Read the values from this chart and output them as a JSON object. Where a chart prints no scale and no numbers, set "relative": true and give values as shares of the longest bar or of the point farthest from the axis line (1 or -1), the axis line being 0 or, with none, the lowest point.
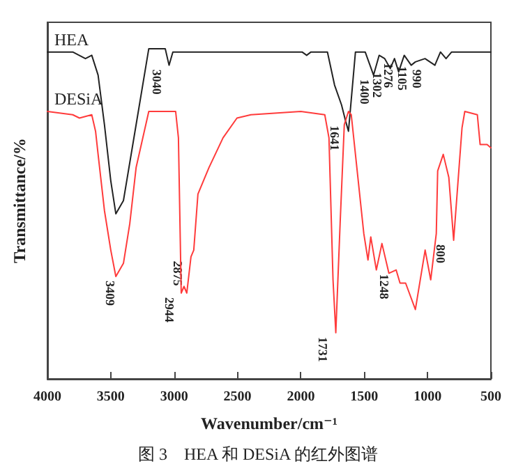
{
  "chart_data": {
    "type": "line",
    "title": "图 3　HEA 和 DESiA 的红外图谱",
    "xlabel": "Wavenumber/cm⁻¹",
    "ylabel": "Transmittance/%",
    "relative": true,
    "tick_labels": "x",
    "legend": false,
    "grid": false,
    "xlim": [
      4000,
      500
    ],
    "xticks": [
      4000,
      3500,
      3000,
      2500,
      2000,
      1500,
      1000,
      500
    ],
    "series": [
      {
        "name": "HEA",
        "color": "#222222",
        "x": [
          4000,
          3800,
          3700,
          3650,
          3600,
          3550,
          3500,
          3460,
          3400,
          3300,
          3200,
          3100,
          3070,
          3040,
          3010,
          2500,
          1990,
          1954,
          1920,
          1790,
          1734,
          1679,
          1646,
          1624,
          1569,
          1492,
          1426,
          1382,
          1338,
          1294,
          1261,
          1228,
          1184,
          1129,
          1096,
          1020,
          942,
          898,
          854,
          810,
          500
        ],
        "values": [
          0.99,
          0.99,
          0.97,
          0.98,
          0.92,
          0.77,
          0.6,
          0.5,
          0.54,
          0.77,
          1.0,
          1.0,
          1.0,
          0.95,
          0.99,
          0.99,
          0.99,
          0.98,
          0.99,
          0.99,
          0.89,
          0.83,
          0.78,
          0.75,
          0.99,
          0.99,
          0.92,
          0.98,
          0.97,
          0.94,
          0.97,
          0.93,
          0.98,
          0.95,
          0.96,
          0.97,
          0.95,
          0.99,
          0.97,
          0.99,
          0.99
        ]
      },
      {
        "name": "DESiA",
        "color": "#ff3b3b",
        "x": [
          4000,
          3800,
          3747,
          3650,
          3620,
          3600,
          3550,
          3500,
          3460,
          3400,
          3350,
          3300,
          3200,
          3100,
          2988,
          2966,
          2944,
          2922,
          2900,
          2867,
          2845,
          2812,
          2725,
          2614,
          2504,
          2394,
          2000,
          1811,
          1778,
          1746,
          1724,
          1690,
          1657,
          1624,
          1602,
          1558,
          1503,
          1470,
          1448,
          1404,
          1360,
          1305,
          1248,
          1217,
          1173,
          1096,
          1019,
          975,
          931,
          920,
          876,
          832,
          794,
          728,
          706,
          607,
          585,
          530,
          500
        ],
        "values": [
          0.81,
          0.8,
          0.79,
          0.8,
          0.75,
          0.68,
          0.51,
          0.39,
          0.31,
          0.35,
          0.47,
          0.64,
          0.81,
          0.81,
          0.81,
          0.73,
          0.26,
          0.28,
          0.26,
          0.37,
          0.39,
          0.56,
          0.64,
          0.73,
          0.79,
          0.8,
          0.81,
          0.8,
          0.73,
          0.3,
          0.14,
          0.47,
          0.77,
          0.81,
          0.8,
          0.64,
          0.44,
          0.36,
          0.43,
          0.33,
          0.41,
          0.32,
          0.33,
          0.29,
          0.29,
          0.21,
          0.39,
          0.3,
          0.44,
          0.63,
          0.68,
          0.61,
          0.42,
          0.76,
          0.81,
          0.8,
          0.71,
          0.71,
          0.7
        ]
      }
    ],
    "annotations": [
      {
        "text": "3040",
        "x": 3040,
        "y": 0.95
      },
      {
        "text": "1641",
        "x": 1641,
        "y": 0.78
      },
      {
        "text": "1400",
        "x": 1400,
        "y": 0.92
      },
      {
        "text": "1302",
        "x": 1302,
        "y": 0.94
      },
      {
        "text": "1276",
        "x": 1276,
        "y": 0.97
      },
      {
        "text": "1105",
        "x": 1105,
        "y": 0.96
      },
      {
        "text": "990",
        "x": 990,
        "y": 0.95
      },
      {
        "text": "3409",
        "x": 3409,
        "y": 0.31
      },
      {
        "text": "2944",
        "x": 2944,
        "y": 0.26
      },
      {
        "text": "2875",
        "x": 2875,
        "y": 0.37
      },
      {
        "text": "1731",
        "x": 1731,
        "y": 0.14
      },
      {
        "text": "1248",
        "x": 1248,
        "y": 0.33
      },
      {
        "text": "800",
        "x": 800,
        "y": 0.42
      }
    ]
  }
}
